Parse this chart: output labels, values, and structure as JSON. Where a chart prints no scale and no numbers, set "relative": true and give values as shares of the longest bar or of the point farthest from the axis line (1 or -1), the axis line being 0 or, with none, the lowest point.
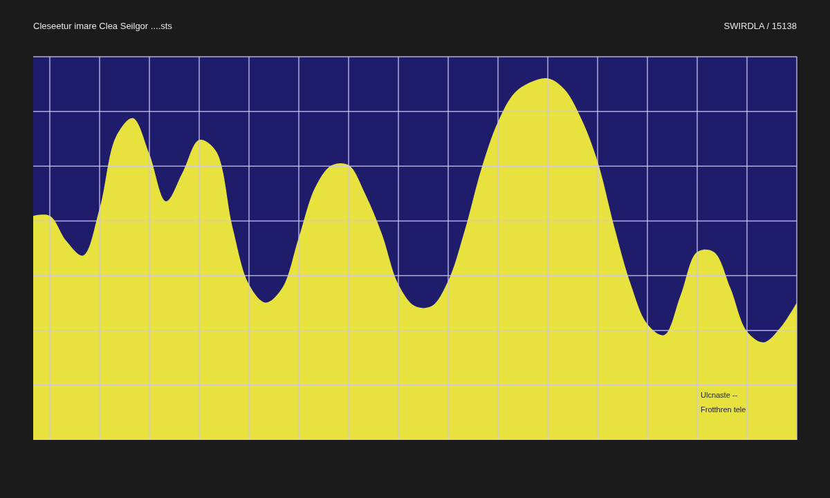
{
  "chart_data": {
    "type": "area",
    "title": "Cleseetur imare Clea Seilgor ....sts",
    "annotations": [
      "SWIRDLA / 15138",
      "Ulcnaste --",
      "Frotthren tele"
    ],
    "categories": [
      null,
      null,
      null,
      null,
      null,
      null,
      null,
      null,
      null,
      null,
      null,
      null,
      null,
      null,
      null,
      null,
      null,
      null,
      null,
      null,
      null,
      null,
      null,
      null,
      null,
      null,
      null,
      null,
      null,
      null,
      null,
      null,
      null,
      null,
      null,
      null,
      null,
      null,
      null,
      null,
      null,
      null,
      null,
      null,
      null,
      null,
      null
    ],
    "values": [
      0.62,
      0.62,
      0.55,
      0.51,
      0.64,
      0.84,
      0.89,
      0.79,
      0.66,
      0.74,
      0.83,
      0.8,
      0.59,
      0.43,
      0.38,
      0.42,
      0.56,
      0.7,
      0.76,
      0.76,
      0.68,
      0.57,
      0.43,
      0.37,
      0.37,
      0.44,
      0.58,
      0.75,
      0.88,
      0.96,
      0.99,
      1.0,
      0.97,
      0.89,
      0.77,
      0.59,
      0.43,
      0.32,
      0.29,
      0.4,
      0.52,
      0.52,
      0.42,
      0.3,
      0.27,
      0.31,
      0.38
    ],
    "color": "#e8e23e",
    "relative": true,
    "grid": true
  }
}
